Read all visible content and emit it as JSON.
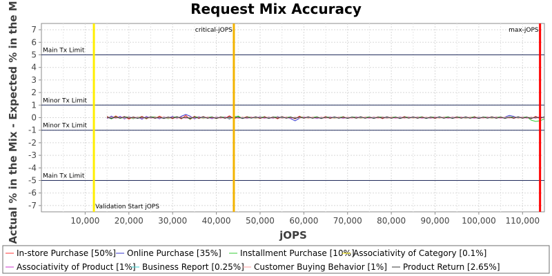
{
  "chart_data": {
    "type": "line",
    "title": "Request Mix Accuracy",
    "xlabel": "jOPS",
    "ylabel": "Actual % in the Mix - Expected % in the Mix",
    "xlim": [
      0,
      115000
    ],
    "ylim": [
      -7.5,
      7.5
    ],
    "grid": true,
    "legend_position": "bottom",
    "x_ticks": [
      {
        "value": 10000,
        "label": "10,000"
      },
      {
        "value": 20000,
        "label": "20,000"
      },
      {
        "value": 30000,
        "label": "30,000"
      },
      {
        "value": 40000,
        "label": "40,000"
      },
      {
        "value": 50000,
        "label": "50,000"
      },
      {
        "value": 60000,
        "label": "60,000"
      },
      {
        "value": 70000,
        "label": "70,000"
      },
      {
        "value": 80000,
        "label": "80,000"
      },
      {
        "value": 90000,
        "label": "90,000"
      },
      {
        "value": 100000,
        "label": "100,000"
      },
      {
        "value": 110000,
        "label": "110,000"
      }
    ],
    "y_ticks": [
      {
        "value": 7,
        "label": "7"
      },
      {
        "value": 6,
        "label": "6"
      },
      {
        "value": 5,
        "label": "5"
      },
      {
        "value": 4,
        "label": "4"
      },
      {
        "value": 3,
        "label": "3"
      },
      {
        "value": 2,
        "label": "2"
      },
      {
        "value": 1,
        "label": "1"
      },
      {
        "value": 0,
        "label": "0"
      },
      {
        "value": -1,
        "label": "-1"
      },
      {
        "value": -2,
        "label": "-2"
      },
      {
        "value": -3,
        "label": "-3"
      },
      {
        "value": -4,
        "label": "-4"
      },
      {
        "value": -5,
        "label": "-5"
      },
      {
        "value": -6,
        "label": "-6"
      },
      {
        "value": -7,
        "label": "-7"
      }
    ],
    "horizontal_lines": [
      {
        "value": 5,
        "label": "Main Tx Limit",
        "color": "#1f2a5a"
      },
      {
        "value": 1,
        "label": "Minor Tx Limit",
        "color": "#1f2a5a"
      },
      {
        "value": -1,
        "label": "Minor Tx Limit",
        "color": "#1f2a5a"
      },
      {
        "value": -5,
        "label": "Main Tx Limit",
        "color": "#1f2a5a"
      }
    ],
    "vertical_lines": [
      {
        "value": 12000,
        "label": "Validation Start jOPS",
        "color": "#ffee00"
      },
      {
        "value": 44000,
        "label": "critical-jOPS",
        "color": "#f2b300"
      },
      {
        "value": 114000,
        "label": "max-jOPS",
        "color": "#ff0000"
      }
    ],
    "x": [
      15000,
      16000,
      17000,
      18000,
      19000,
      20000,
      21000,
      22000,
      23000,
      24000,
      25000,
      26000,
      27000,
      28000,
      29000,
      30000,
      31000,
      32000,
      33000,
      34000,
      35000,
      36000,
      37000,
      38000,
      39000,
      40000,
      41000,
      42000,
      43000,
      44000,
      45000,
      46000,
      47000,
      48000,
      49000,
      50000,
      51000,
      52000,
      53000,
      54000,
      55000,
      56000,
      57000,
      58000,
      59000,
      60000,
      61000,
      62000,
      63000,
      64000,
      65000,
      66000,
      67000,
      68000,
      69000,
      70000,
      71000,
      72000,
      73000,
      74000,
      75000,
      76000,
      77000,
      78000,
      79000,
      80000,
      81000,
      82000,
      83000,
      84000,
      85000,
      86000,
      87000,
      88000,
      89000,
      90000,
      91000,
      92000,
      93000,
      94000,
      95000,
      96000,
      97000,
      98000,
      99000,
      100000,
      101000,
      102000,
      103000,
      104000,
      105000,
      106000,
      107000,
      108000,
      109000,
      110000,
      111000,
      112000,
      113000,
      114000,
      115000
    ],
    "series": [
      {
        "name": "In-store Purchase [50%]",
        "color": "#ff3333",
        "values": [
          0.1,
          -0.08,
          0.14,
          -0.05,
          0.09,
          -0.12,
          0.06,
          -0.03,
          0.1,
          -0.1,
          0.07,
          -0.06,
          0.12,
          -0.04,
          0.05,
          -0.09,
          0.08,
          -0.1,
          0.18,
          -0.14,
          0.11,
          -0.07,
          0.09,
          -0.05,
          0.06,
          -0.08,
          0.07,
          -0.06,
          0.15,
          -0.09,
          0.05,
          -0.04,
          0.08,
          -0.03,
          0.07,
          -0.07,
          0.09,
          -0.05,
          0.06,
          -0.09,
          0.08,
          -0.04,
          0.06,
          -0.1,
          0.12,
          -0.05,
          0.07,
          -0.04,
          0.06,
          -0.06,
          0.09,
          -0.07,
          0.05,
          -0.04,
          0.08,
          -0.06,
          0.04,
          -0.05,
          0.07,
          -0.04,
          0.05,
          -0.03,
          0.06,
          -0.08,
          0.07,
          -0.05,
          0.04,
          -0.06,
          0.09,
          -0.04,
          0.06,
          -0.05,
          0.07,
          -0.03,
          0.05,
          -0.07,
          0.06,
          -0.04,
          0.05,
          -0.03,
          0.07,
          -0.05,
          0.06,
          -0.04,
          0.08,
          -0.06,
          0.05,
          -0.03,
          0.07,
          -0.05,
          0.06,
          -0.04,
          0.05,
          -0.06,
          0.07,
          -0.05,
          0.04,
          -0.08,
          0.1,
          -0.06,
          0.05
        ]
      },
      {
        "name": "Online Purchase [35%]",
        "color": "#3333cc",
        "values": [
          -0.08,
          0.12,
          -0.06,
          0.1,
          -0.1,
          0.08,
          -0.05,
          0.06,
          -0.12,
          0.09,
          -0.06,
          0.05,
          -0.09,
          0.07,
          -0.05,
          0.1,
          -0.07,
          0.11,
          0.25,
          0.12,
          -0.1,
          0.08,
          -0.06,
          0.05,
          -0.08,
          0.07,
          -0.05,
          0.06,
          -0.11,
          0.08,
          -0.04,
          0.05,
          -0.07,
          0.04,
          -0.06,
          0.08,
          -0.05,
          0.06,
          -0.07,
          0.09,
          -0.06,
          0.05,
          -0.08,
          -0.25,
          -0.05,
          0.06,
          -0.05,
          0.04,
          -0.07,
          0.05,
          -0.05,
          0.06,
          -0.04,
          0.05,
          -0.06,
          0.05,
          -0.04,
          0.06,
          -0.05,
          0.04,
          -0.05,
          0.06,
          -0.04,
          0.05,
          -0.06,
          0.05,
          -0.04,
          0.07,
          -0.05,
          0.05,
          -0.04,
          0.06,
          -0.05,
          0.04,
          -0.06,
          0.05,
          -0.04,
          0.05,
          -0.05,
          0.06,
          -0.04,
          0.05,
          -0.06,
          0.04,
          -0.05,
          0.06,
          -0.04,
          0.05,
          -0.05,
          0.06,
          -0.04,
          0.05,
          0.18,
          0.1,
          -0.05,
          0.06,
          -0.04,
          0.05,
          -0.06,
          0.08,
          -0.05
        ]
      },
      {
        "name": "Installment Purchase [10%]",
        "color": "#33cc33",
        "values": [
          0.05,
          -0.1,
          0.08,
          -0.06,
          0.04,
          0.06,
          -0.09,
          0.05,
          0.03,
          -0.06,
          0.05,
          0.07,
          -0.05,
          0.04,
          -0.08,
          0.05,
          0.06,
          -0.05,
          0.04,
          -0.1,
          0.06,
          0.05,
          -0.07,
          0.04,
          0.05,
          -0.06,
          0.04,
          0.05,
          -0.08,
          0.06,
          0.12,
          -0.05,
          0.04,
          0.05,
          -0.06,
          0.04,
          0.05,
          -0.05,
          0.04,
          0.06,
          -0.05,
          0.04,
          0.05,
          -0.06,
          0.04,
          0.05,
          -0.05,
          0.04,
          0.06,
          -0.05,
          0.04,
          0.05,
          -0.06,
          0.04,
          0.05,
          -0.05,
          0.04,
          0.05,
          -0.06,
          0.04,
          0.05,
          -0.05,
          0.04,
          0.06,
          -0.05,
          0.04,
          0.05,
          -0.06,
          0.04,
          0.05,
          -0.05,
          0.04,
          0.05,
          -0.06,
          0.04,
          0.05,
          -0.05,
          0.04,
          0.06,
          -0.05,
          0.04,
          0.05,
          -0.06,
          0.04,
          0.05,
          -0.05,
          0.04,
          0.05,
          -0.06,
          0.04,
          0.05,
          -0.05,
          0.04,
          0.06,
          -0.05,
          0.04,
          0.05,
          -0.2,
          -0.3,
          -0.25,
          -0.1
        ]
      },
      {
        "name": "Associativity of Category [0.1%]",
        "color": "#ffee00",
        "values": [
          0.02,
          -0.02,
          0.03,
          -0.01,
          0.02,
          -0.02,
          0.01,
          -0.01,
          0.02,
          -0.02,
          0.01,
          -0.01,
          0.02,
          -0.01,
          0.01,
          -0.02,
          0.02,
          -0.01,
          0.02,
          -0.02,
          0.01,
          -0.01,
          0.02,
          -0.01,
          0.01,
          -0.02,
          0.01,
          -0.01,
          0.02,
          -0.01,
          0.01,
          -0.01,
          0.02,
          -0.01,
          0.01,
          -0.02,
          0.02,
          -0.01,
          0.01,
          -0.02,
          0.02,
          -0.01,
          0.01,
          -0.02,
          0.02,
          -0.01,
          0.01,
          -0.01,
          0.02,
          -0.02,
          0.01,
          -0.01,
          0.02,
          -0.01,
          0.01,
          -0.02,
          0.01,
          -0.01,
          0.02,
          -0.01,
          0.01,
          -0.01,
          0.02,
          -0.01,
          0.01,
          -0.02,
          0.02,
          -0.01,
          0.01,
          -0.02,
          0.02,
          -0.01,
          0.01,
          -0.02,
          0.02,
          -0.01,
          0.01,
          -0.01,
          0.02,
          -0.02,
          0.01,
          -0.01,
          0.02,
          -0.01,
          0.01,
          -0.02,
          0.01,
          -0.01,
          0.02,
          -0.01,
          0.01,
          -0.01,
          0.02,
          -0.01,
          0.01,
          -0.02,
          0.02,
          -0.01,
          0.01,
          -0.02,
          0.01
        ]
      },
      {
        "name": "Associativity of Product [1%]",
        "color": "#cc33cc",
        "values": [
          -0.04,
          0.03,
          -0.05,
          0.04,
          -0.03,
          0.05,
          -0.04,
          0.03,
          -0.05,
          0.04,
          -0.03,
          0.04,
          -0.05,
          0.03,
          -0.04,
          0.05,
          -0.03,
          0.04,
          -0.05,
          0.03,
          -0.04,
          0.05,
          -0.03,
          0.04,
          -0.05,
          0.03,
          -0.04,
          0.05,
          -0.03,
          0.04,
          -0.05,
          0.03,
          -0.04,
          0.05,
          -0.03,
          0.04,
          -0.05,
          0.03,
          -0.04,
          0.05,
          -0.03,
          0.04,
          -0.05,
          0.03,
          -0.04,
          0.05,
          -0.03,
          0.04,
          -0.05,
          0.03,
          -0.04,
          0.05,
          -0.03,
          0.04,
          -0.05,
          0.03,
          -0.04,
          0.05,
          -0.03,
          0.04,
          -0.05,
          0.03,
          -0.04,
          0.05,
          -0.03,
          0.04,
          -0.05,
          0.03,
          -0.04,
          0.05,
          -0.03,
          0.04,
          -0.05,
          0.03,
          -0.04,
          0.05,
          -0.03,
          0.04,
          -0.05,
          0.03,
          -0.04,
          0.05,
          -0.03,
          0.04,
          -0.05,
          0.03,
          -0.04,
          0.05,
          -0.03,
          0.04,
          -0.05,
          0.03,
          -0.04,
          0.05,
          -0.03,
          0.04,
          -0.05,
          0.03,
          -0.04,
          0.05,
          -0.03
        ]
      },
      {
        "name": "Business Report [0.25%]",
        "color": "#33cccc",
        "values": [
          0.03,
          -0.02,
          0.02,
          -0.03,
          0.02,
          -0.02,
          0.03,
          -0.02,
          0.02,
          -0.03,
          0.02,
          -0.02,
          0.03,
          -0.02,
          0.02,
          -0.03,
          0.02,
          -0.02,
          0.03,
          -0.02,
          0.02,
          -0.03,
          0.02,
          -0.02,
          0.03,
          -0.02,
          0.02,
          -0.03,
          0.02,
          -0.02,
          0.03,
          -0.02,
          0.02,
          -0.03,
          0.02,
          -0.02,
          0.03,
          -0.02,
          0.02,
          -0.03,
          0.02,
          -0.02,
          0.03,
          -0.02,
          0.02,
          -0.03,
          0.02,
          -0.02,
          0.03,
          -0.02,
          0.02,
          -0.03,
          0.02,
          -0.02,
          0.03,
          -0.02,
          0.02,
          -0.03,
          0.02,
          -0.02,
          0.03,
          -0.02,
          0.02,
          -0.03,
          0.02,
          -0.02,
          0.03,
          -0.02,
          0.02,
          -0.03,
          0.02,
          -0.02,
          0.03,
          -0.02,
          0.02,
          -0.03,
          0.02,
          -0.02,
          0.03,
          -0.02,
          0.02,
          -0.03,
          0.02,
          -0.02,
          0.03,
          -0.02,
          0.02,
          -0.03,
          0.02,
          -0.02,
          0.03,
          -0.02,
          0.02,
          -0.03,
          0.02,
          -0.02,
          0.03,
          -0.02,
          0.02,
          -0.03,
          0.02
        ]
      },
      {
        "name": "Customer Buying Behavior [1%]",
        "color": "#ff9999",
        "values": [
          -0.03,
          0.05,
          -0.04,
          0.03,
          -0.05,
          0.04,
          -0.03,
          0.05,
          -0.04,
          0.03,
          -0.05,
          0.04,
          -0.03,
          0.05,
          -0.04,
          0.03,
          -0.05,
          0.04,
          -0.03,
          0.05,
          -0.04,
          0.03,
          -0.05,
          0.04,
          -0.03,
          0.05,
          -0.04,
          0.03,
          -0.05,
          0.04,
          -0.03,
          0.05,
          -0.04,
          0.03,
          -0.05,
          0.04,
          -0.03,
          0.05,
          -0.04,
          0.03,
          -0.05,
          0.04,
          -0.03,
          0.05,
          -0.04,
          0.03,
          -0.05,
          0.04,
          -0.03,
          0.05,
          -0.04,
          0.03,
          -0.05,
          0.04,
          -0.03,
          0.05,
          -0.04,
          0.03,
          -0.05,
          0.04,
          -0.03,
          0.05,
          -0.04,
          0.03,
          -0.05,
          0.04,
          -0.03,
          0.05,
          -0.04,
          0.03,
          -0.05,
          0.04,
          -0.03,
          0.05,
          -0.04,
          0.03,
          -0.05,
          0.04,
          -0.03,
          0.05,
          -0.04,
          0.03,
          -0.05,
          0.04,
          -0.03,
          0.05,
          -0.04,
          0.03,
          -0.05,
          0.04,
          -0.03,
          0.05,
          -0.04,
          0.03,
          -0.05,
          0.04,
          -0.03,
          0.05,
          -0.04,
          0.03,
          -0.05
        ]
      },
      {
        "name": "Product Return [2.65%]",
        "color": "#333333",
        "values": [
          0.04,
          -0.06,
          0.05,
          -0.04,
          0.07,
          -0.05,
          0.04,
          -0.06,
          0.05,
          -0.04,
          0.06,
          -0.05,
          0.04,
          -0.07,
          0.05,
          -0.04,
          0.06,
          -0.05,
          0.04,
          -0.06,
          0.05,
          -0.04,
          0.07,
          -0.05,
          0.04,
          -0.06,
          0.05,
          -0.04,
          0.06,
          -0.05,
          0.04,
          -0.07,
          0.05,
          -0.04,
          0.06,
          -0.05,
          0.04,
          -0.06,
          0.05,
          -0.04,
          0.07,
          -0.05,
          0.04,
          -0.06,
          0.05,
          -0.04,
          0.06,
          -0.05,
          0.04,
          -0.07,
          0.05,
          -0.04,
          0.06,
          -0.05,
          0.04,
          -0.06,
          0.05,
          -0.04,
          0.07,
          -0.05,
          0.04,
          -0.06,
          0.05,
          -0.04,
          0.06,
          -0.05,
          0.04,
          -0.07,
          0.05,
          -0.04,
          0.06,
          -0.05,
          0.04,
          -0.06,
          0.05,
          -0.04,
          0.07,
          -0.05,
          0.04,
          -0.06,
          0.05,
          -0.04,
          0.06,
          -0.05,
          0.04,
          -0.07,
          0.05,
          -0.04,
          0.06,
          -0.05,
          0.04,
          -0.06,
          0.05,
          -0.04,
          0.07,
          -0.05,
          0.04,
          -0.06,
          0.05,
          -0.04,
          0.06
        ]
      }
    ]
  }
}
